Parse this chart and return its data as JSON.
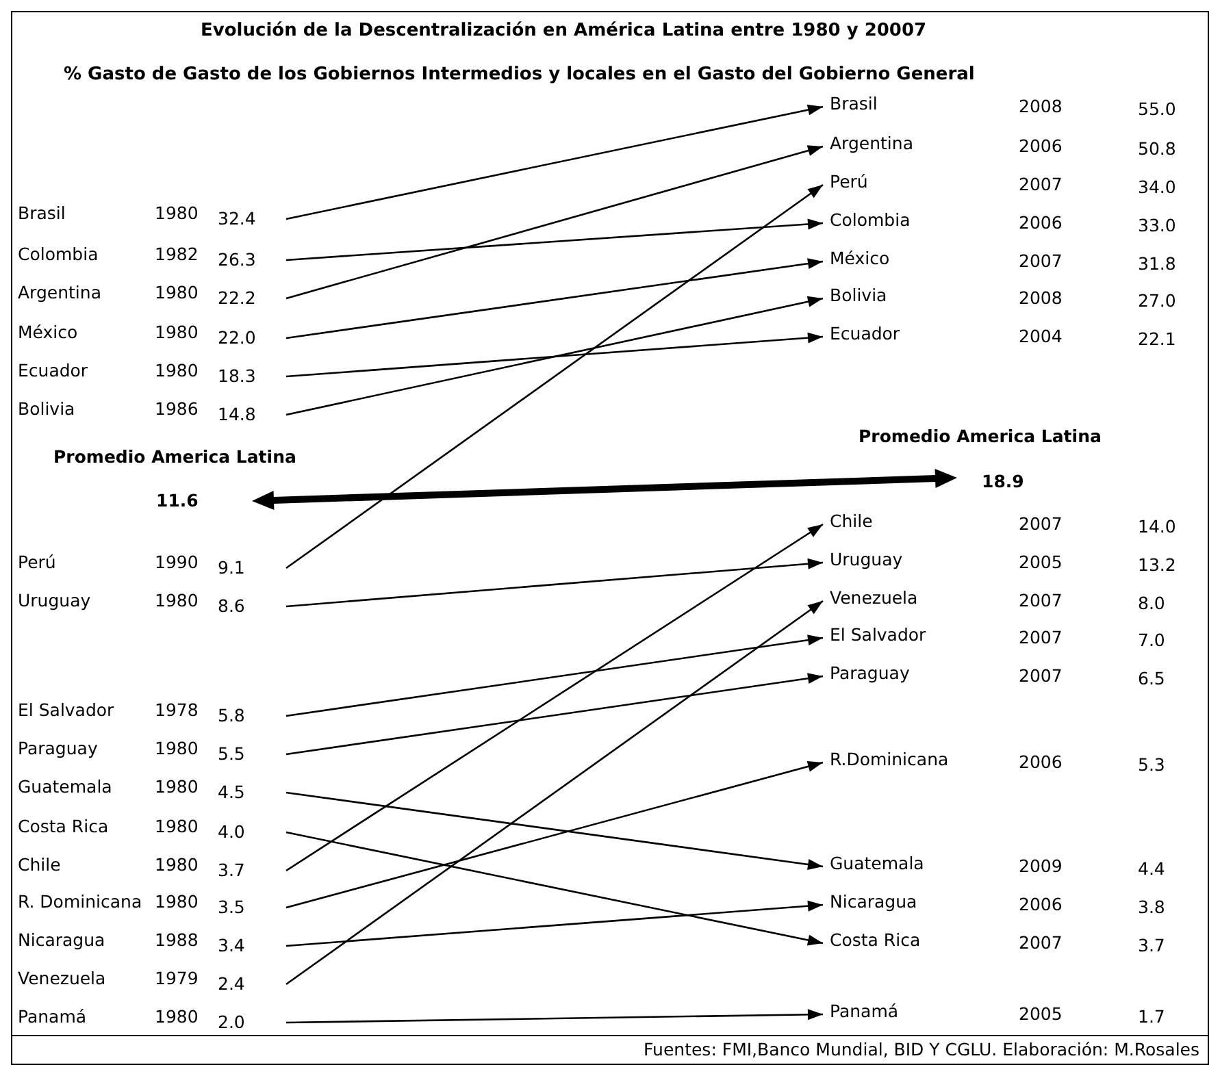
{
  "chart_data": [
    {
      "type": "other",
      "title": "Evolución de la Descentralización en América Latina  entre 1980 y 20007",
      "subtitle": "% Gasto de Gasto de los Gobiernos Intermedios y locales en el Gasto del Gobierno General",
      "categories": [
        "Brasil",
        "Colombia",
        "Argentina",
        "México",
        "Ecuador",
        "Bolivia",
        "Perú",
        "Uruguay",
        "El Salvador",
        "Paraguay",
        "Guatemala",
        "Costa Rica",
        "Chile",
        "R. Dominicana",
        "Nicaragua",
        "Venezuela",
        "Panamá"
      ],
      "series": [
        {
          "values": [
            1980,
            1982,
            1980,
            1980,
            1980,
            1986,
            1990,
            1980,
            1978,
            1980,
            1980,
            1980,
            1980,
            1980,
            1988,
            1979,
            1980
          ]
        },
        {
          "values": [
            32.4,
            26.3,
            22.2,
            22.0,
            18.3,
            14.8,
            9.1,
            8.6,
            5.8,
            5.5,
            4.5,
            4.0,
            3.7,
            3.5,
            3.4,
            2.4,
            2.0
          ],
          "value_labels": [
            "32.4",
            "26.3",
            "22.2",
            "22.0",
            "18.3",
            "14.8",
            "9.1",
            "8.6",
            "5.8",
            "5.5",
            "4.5",
            "4.0",
            "3.7",
            "3.5",
            "3.4",
            "2.4",
            "2.0"
          ]
        }
      ],
      "data_labels": true,
      "annotations": [
        "Promedio America Latina",
        "11.6"
      ]
    },
    {
      "type": "other",
      "categories": [
        "Brasil",
        "Colombia",
        "Argentina",
        "México",
        "Ecuador",
        "Bolivia",
        "Perú",
        "Uruguay",
        "El Salvador",
        "Paraguay",
        "Guatemala",
        "Costa Rica",
        "Chile",
        "R.Dominicana",
        "Nicaragua",
        "Venezuela",
        "Panamá"
      ],
      "series": [
        {
          "values": [
            2008,
            2006,
            2006,
            2007,
            2004,
            2008,
            2007,
            2005,
            2007,
            2007,
            2009,
            2007,
            2007,
            2006,
            2006,
            2007,
            2005
          ]
        },
        {
          "values": [
            55.0,
            33.0,
            50.8,
            31.8,
            22.1,
            27.0,
            34.0,
            13.2,
            7.0,
            6.5,
            4.4,
            3.7,
            14.0,
            5.3,
            3.8,
            8.0,
            1.7
          ],
          "value_labels": [
            "55.0",
            "33.0",
            "50.8",
            "31.8",
            "22.1",
            "27.0",
            "34.0",
            "13.2",
            "7.0",
            "6.5",
            "4.4",
            "3.7",
            "14.0",
            "5.3",
            "3.8",
            "8.0",
            "1.7"
          ],
          "color": "#000000"
        }
      ],
      "data_labels": true,
      "annotations": [
        "Promedio America Latina",
        "18.9",
        "Fuentes: FMI,Banco Mundial, BID Y CGLU. Elaboración: M.Rosales"
      ]
    }
  ]
}
